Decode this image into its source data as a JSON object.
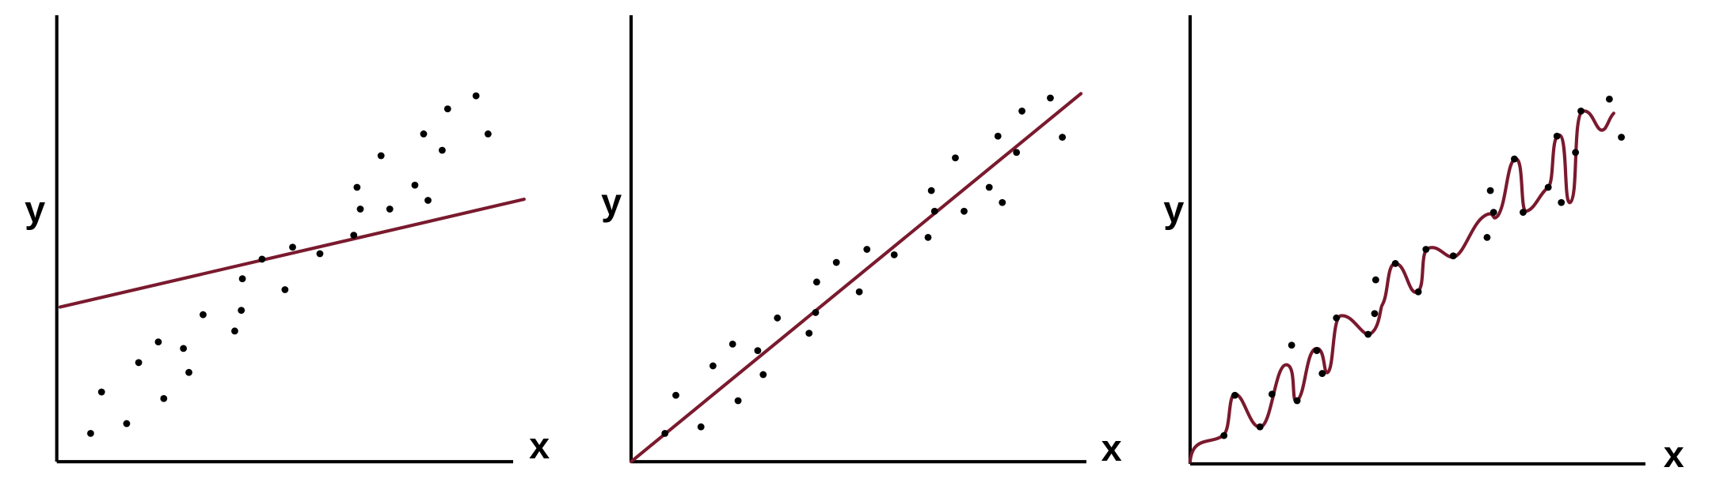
{
  "panels": [
    {
      "y_label": "y",
      "x_label": "x"
    },
    {
      "y_label": "y",
      "x_label": "x"
    },
    {
      "y_label": "y",
      "x_label": "x"
    }
  ]
}
